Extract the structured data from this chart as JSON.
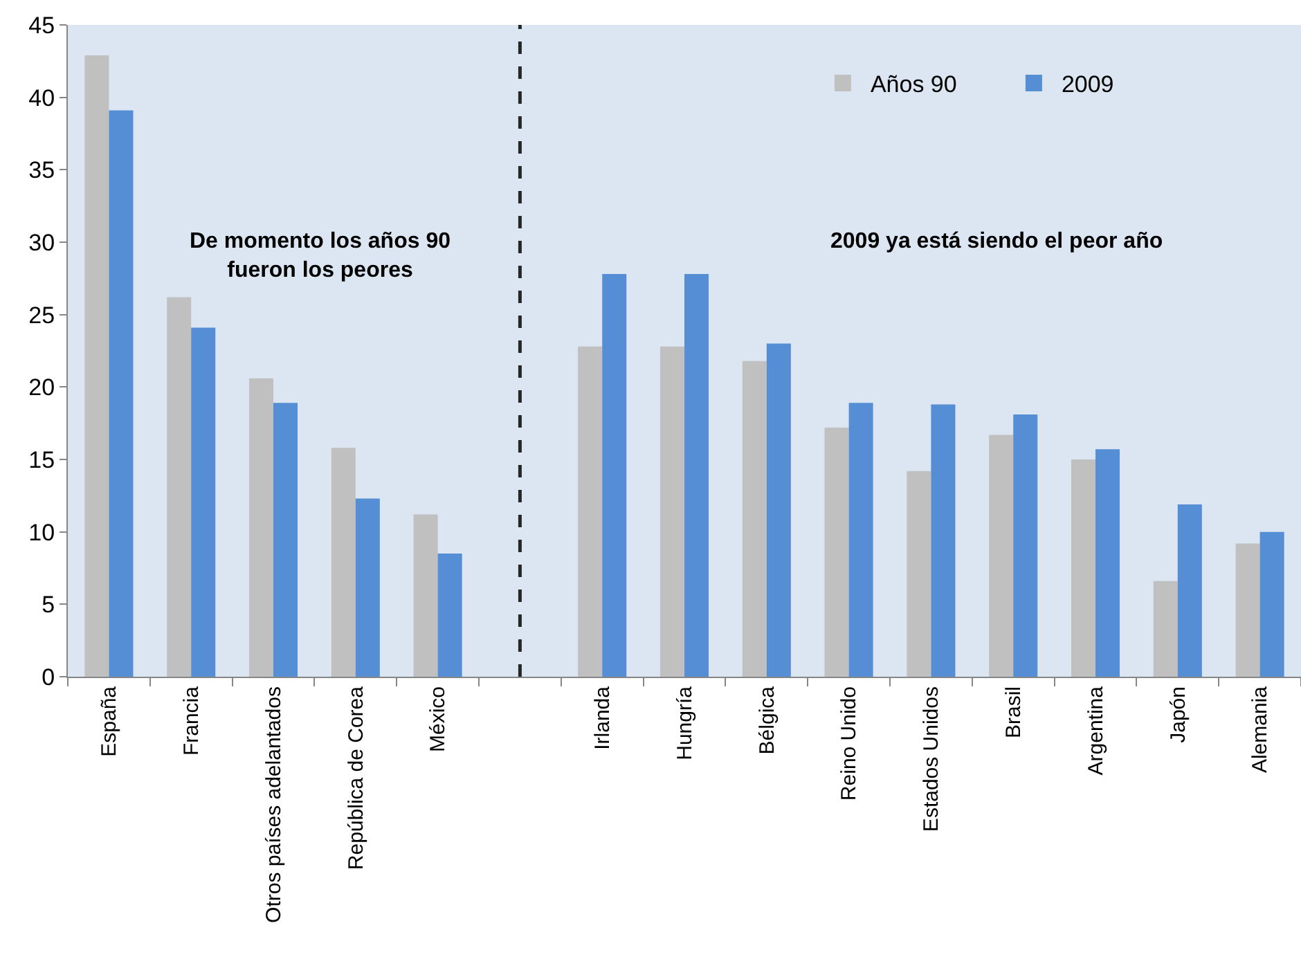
{
  "chart_data": {
    "type": "bar",
    "categories": [
      "España",
      "Francia",
      "Otros países adelantados",
      "República de Corea",
      "México",
      null,
      "Irlanda",
      "Hungría",
      "Bélgica",
      "Reino Unido",
      "Estados Unidos",
      "Brasil",
      "Argentina",
      "Japón",
      "Alemania"
    ],
    "series": [
      {
        "name": "Años 90",
        "color": "#c0c0c0",
        "values": [
          42.9,
          26.2,
          20.6,
          15.8,
          11.2,
          null,
          22.8,
          22.8,
          21.8,
          17.2,
          14.2,
          16.7,
          15.0,
          6.6,
          9.2
        ]
      },
      {
        "name": "2009",
        "color": "#558ed5",
        "values": [
          39.1,
          24.1,
          18.9,
          12.3,
          8.5,
          null,
          27.8,
          27.8,
          23.0,
          18.9,
          18.8,
          18.1,
          15.7,
          11.9,
          10.0
        ]
      }
    ],
    "ylim": [
      0,
      45
    ],
    "yticks": [
      0,
      5,
      10,
      15,
      20,
      25,
      30,
      35,
      40,
      45
    ],
    "legend": "top right",
    "annotations": [
      "De momento los años 90\nfueron los peores",
      "2009 ya está siendo el peor año"
    ]
  }
}
